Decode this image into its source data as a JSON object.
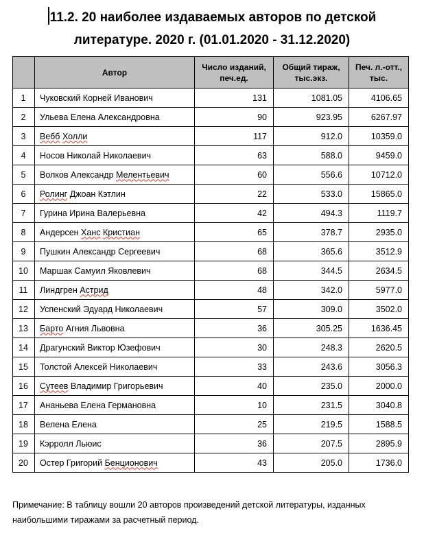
{
  "doc": {
    "title": "11.2. 20 наиболее издаваемых авторов по детской\nлитературе. 2020 г. (01.01.2020 - 31.12.2020)",
    "note": "Примечание: В таблицу вошли 20 авторов произведений детской литературы, изданных наибольшими тиражами за расчетный период."
  },
  "colors": {
    "header_bg": "#BFBFBF",
    "border": "#000000",
    "text": "#1a1a1a",
    "misspell_underline": "#E03828"
  },
  "table": {
    "headers": [
      "",
      "Автор",
      "Число изданий,\nпеч.ед.",
      "Общий тираж,\nтыс.экз.",
      "Печ. л.-отт.,\nтыс."
    ],
    "rows": [
      {
        "num": "1",
        "author": [
          {
            "t": "Чуковский Корней Иванович",
            "sq": false
          }
        ],
        "editions": "131",
        "circulation": "1081.05",
        "sheets": "4106.65"
      },
      {
        "num": "2",
        "author": [
          {
            "t": "Ульева Елена Александровна",
            "sq": false
          }
        ],
        "editions": "90",
        "circulation": "923.95",
        "sheets": "6267.97"
      },
      {
        "num": "3",
        "author": [
          {
            "t": "Вебб",
            "sq": true
          },
          {
            "t": " ",
            "sq": false
          },
          {
            "t": "Холли",
            "sq": true
          }
        ],
        "editions": "117",
        "circulation": "912.0",
        "sheets": "10359.0"
      },
      {
        "num": "4",
        "author": [
          {
            "t": "Носов Николай Николаевич",
            "sq": false
          }
        ],
        "editions": "63",
        "circulation": "588.0",
        "sheets": "9459.0"
      },
      {
        "num": "5",
        "author": [
          {
            "t": "Волков Александр ",
            "sq": false
          },
          {
            "t": "Мелентьевич",
            "sq": true
          }
        ],
        "editions": "60",
        "circulation": "556.6",
        "sheets": "10712.0"
      },
      {
        "num": "6",
        "author": [
          {
            "t": "Ролинг",
            "sq": true
          },
          {
            "t": " Джоан Кэтлин",
            "sq": false
          }
        ],
        "editions": "22",
        "circulation": "533.0",
        "sheets": "15865.0"
      },
      {
        "num": "7",
        "author": [
          {
            "t": "Гурина Ирина Валерьевна",
            "sq": false
          }
        ],
        "editions": "42",
        "circulation": "494.3",
        "sheets": "1119.7"
      },
      {
        "num": "8",
        "author": [
          {
            "t": "Андерсен ",
            "sq": false
          },
          {
            "t": "Ханс",
            "sq": true
          },
          {
            "t": " ",
            "sq": false
          },
          {
            "t": "Кристиан",
            "sq": true
          }
        ],
        "editions": "65",
        "circulation": "378.7",
        "sheets": "2935.0"
      },
      {
        "num": "9",
        "author": [
          {
            "t": "Пушкин Александр Сергеевич",
            "sq": false
          }
        ],
        "editions": "68",
        "circulation": "365.6",
        "sheets": "3512.9"
      },
      {
        "num": "10",
        "author": [
          {
            "t": "Маршак Самуил Яковлевич",
            "sq": false
          }
        ],
        "editions": "68",
        "circulation": "344.5",
        "sheets": "2634.5"
      },
      {
        "num": "11",
        "author": [
          {
            "t": "Линдгрен ",
            "sq": false
          },
          {
            "t": "Астрид",
            "sq": true
          }
        ],
        "editions": "48",
        "circulation": "342.0",
        "sheets": "5977.0"
      },
      {
        "num": "12",
        "author": [
          {
            "t": "Успенский Эдуард Николаевич",
            "sq": false
          }
        ],
        "editions": "57",
        "circulation": "309.0",
        "sheets": "3502.0"
      },
      {
        "num": "13",
        "author": [
          {
            "t": "Барто",
            "sq": true
          },
          {
            "t": " Агния Львовна",
            "sq": false
          }
        ],
        "editions": "36",
        "circulation": "305.25",
        "sheets": "1636.45"
      },
      {
        "num": "14",
        "author": [
          {
            "t": "Драгунский Виктор Юзефович",
            "sq": false
          }
        ],
        "editions": "30",
        "circulation": "248.3",
        "sheets": "2620.5"
      },
      {
        "num": "15",
        "author": [
          {
            "t": "Толстой Алексей Николаевич",
            "sq": false
          }
        ],
        "editions": "33",
        "circulation": "243.6",
        "sheets": "3056.3"
      },
      {
        "num": "16",
        "author": [
          {
            "t": "Сутеев",
            "sq": true
          },
          {
            "t": " Владимир Григорьевич",
            "sq": false
          }
        ],
        "editions": "40",
        "circulation": "235.0",
        "sheets": "2000.0"
      },
      {
        "num": "17",
        "author": [
          {
            "t": "Ананьева Елена Германовна",
            "sq": false
          }
        ],
        "editions": "10",
        "circulation": "231.5",
        "sheets": "3040.8"
      },
      {
        "num": "18",
        "author": [
          {
            "t": "Велена Елена",
            "sq": false
          }
        ],
        "editions": "25",
        "circulation": "219.5",
        "sheets": "1588.5"
      },
      {
        "num": "19",
        "author": [
          {
            "t": "Кэрролл Льюис",
            "sq": false
          }
        ],
        "editions": "36",
        "circulation": "207.5",
        "sheets": "2895.9"
      },
      {
        "num": "20",
        "author": [
          {
            "t": "Остер Григорий ",
            "sq": false
          },
          {
            "t": "Бенционович",
            "sq": true
          }
        ],
        "editions": "43",
        "circulation": "205.0",
        "sheets": "1736.0"
      }
    ]
  }
}
